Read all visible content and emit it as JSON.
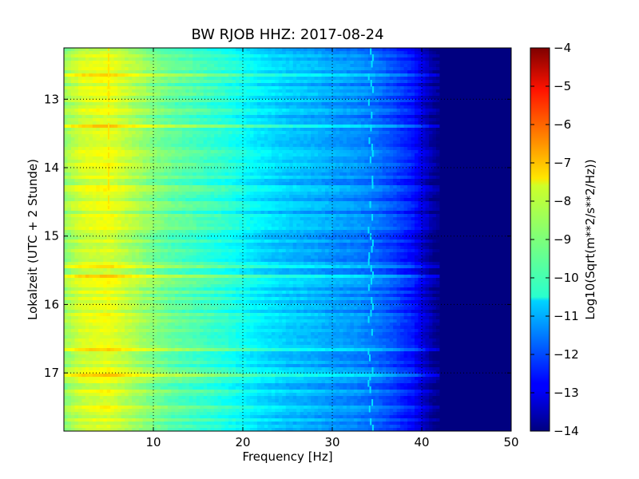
{
  "chart_data": {
    "type": "heatmap",
    "title": "BW RJOB HHZ: 2017-08-24",
    "xlabel": "Frequency [Hz]",
    "ylabel": "Lokalzeit (UTC + 2 Stunde)",
    "xlim": [
      0,
      50
    ],
    "ylim": [
      12.25,
      17.85
    ],
    "y_inverted": true,
    "x_ticks": [
      10,
      20,
      30,
      40,
      50
    ],
    "y_ticks": [
      13,
      14,
      15,
      16,
      17
    ],
    "grid": "dotted",
    "colormap": "jet",
    "colorbar": {
      "label": "Log10(Sqrt(m**2/s**2/Hz))",
      "min": -14,
      "max": -4,
      "ticks": [
        -4,
        -5,
        -6,
        -7,
        -8,
        -9,
        -10,
        -11,
        -12,
        -13,
        -14
      ]
    },
    "spectral_profile": {
      "frequency_hz": [
        0,
        2,
        5,
        8,
        10,
        12,
        15,
        18,
        20,
        22,
        25,
        28,
        30,
        33,
        35,
        37,
        39,
        40,
        41,
        42,
        50
      ],
      "level": [
        -8.8,
        -8.2,
        -8.0,
        -8.6,
        -9.0,
        -9.3,
        -9.6,
        -9.9,
        -10.2,
        -10.5,
        -10.8,
        -11.0,
        -11.2,
        -11.4,
        -11.7,
        -12.1,
        -12.6,
        -13.1,
        -13.6,
        -14.0,
        -14.0
      ]
    },
    "features": [
      {
        "frequency_hz": 5,
        "time_start": 12.25,
        "time_end": 14.6,
        "level": -7.5
      },
      {
        "frequency_hz": 34.3,
        "time_start": 12.25,
        "time_end": 17.85,
        "level": -10.5
      }
    ]
  }
}
